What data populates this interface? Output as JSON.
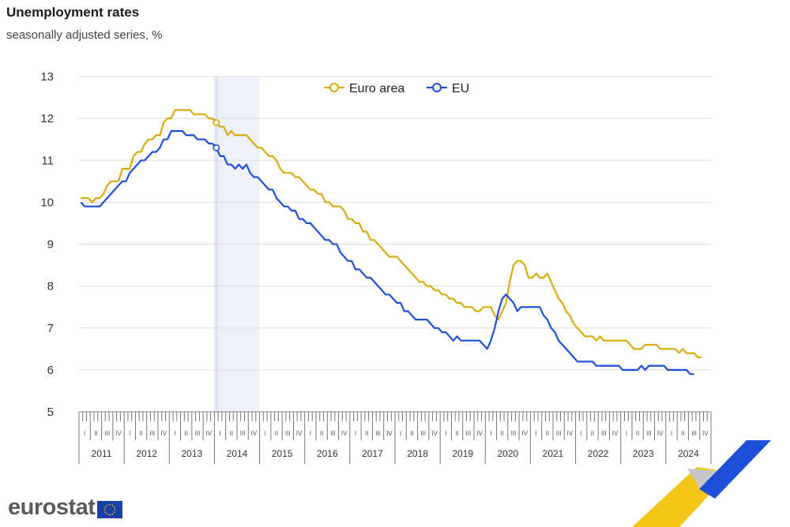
{
  "header": {
    "title": "Unemployment rates",
    "subtitle": "seasonally adjusted series, %"
  },
  "brand": {
    "name": "eurostat"
  },
  "colors": {
    "euro_area": "#d9ab0e",
    "eu": "#1d4fd8",
    "highlight": "#e6ebf8",
    "grid": "#dcdcdc"
  },
  "chart_data": {
    "type": "line",
    "title": "Unemployment rates",
    "subtitle": "seasonally adjusted series, %",
    "xlabel": "",
    "ylabel": "",
    "ylim": [
      5,
      13
    ],
    "yticks": [
      5,
      6,
      7,
      8,
      9,
      10,
      11,
      12,
      13
    ],
    "grid": true,
    "legend_position": "top-center",
    "x_start": "2011-01",
    "x_end": "2024-12",
    "quarters": [
      "I",
      "II",
      "III",
      "IV"
    ],
    "years": [
      "2011",
      "2012",
      "2013",
      "2014",
      "2015",
      "2016",
      "2017",
      "2018",
      "2019",
      "2020",
      "2021",
      "2022",
      "2023",
      "2024"
    ],
    "highlight_period": [
      "2014-01",
      "2014-12"
    ],
    "highlight_marker_date": "2014-01",
    "series": [
      {
        "name": "Euro area",
        "color": "#d9ab0e",
        "points": [
          [
            "2011-01",
            10.1
          ],
          [
            "2011-03",
            10.1
          ],
          [
            "2011-04",
            10.0
          ],
          [
            "2011-05",
            10.1
          ],
          [
            "2011-06",
            10.1
          ],
          [
            "2011-07",
            10.2
          ],
          [
            "2011-08",
            10.4
          ],
          [
            "2011-09",
            10.5
          ],
          [
            "2011-12",
            10.8
          ],
          [
            "2012-03",
            11.1
          ],
          [
            "2012-04",
            11.2
          ],
          [
            "2012-06",
            11.4
          ],
          [
            "2012-07",
            11.5
          ],
          [
            "2012-08",
            11.5
          ],
          [
            "2012-09",
            11.6
          ],
          [
            "2012-11",
            11.9
          ],
          [
            "2012-12",
            12.0
          ],
          [
            "2013-01",
            12.0
          ],
          [
            "2013-02",
            12.2
          ],
          [
            "2013-06",
            12.2
          ],
          [
            "2013-07",
            12.1
          ],
          [
            "2013-10",
            12.1
          ],
          [
            "2013-11",
            12.0
          ],
          [
            "2014-01",
            11.9
          ],
          [
            "2014-02",
            11.8
          ],
          [
            "2014-03",
            11.8
          ],
          [
            "2014-04",
            11.6
          ],
          [
            "2014-05",
            11.7
          ],
          [
            "2014-06",
            11.6
          ],
          [
            "2014-09",
            11.6
          ],
          [
            "2014-10",
            11.5
          ],
          [
            "2014-11",
            11.4
          ],
          [
            "2014-12",
            11.3
          ],
          [
            "2015-01",
            11.3
          ],
          [
            "2015-02",
            11.2
          ],
          [
            "2015-03",
            11.1
          ],
          [
            "2015-04",
            11.1
          ],
          [
            "2015-05",
            11.0
          ],
          [
            "2015-06",
            10.8
          ],
          [
            "2015-07",
            10.7
          ],
          [
            "2015-09",
            10.7
          ],
          [
            "2015-10",
            10.6
          ],
          [
            "2015-11",
            10.6
          ],
          [
            "2015-12",
            10.5
          ],
          [
            "2016-01",
            10.4
          ],
          [
            "2016-02",
            10.3
          ],
          [
            "2016-03",
            10.3
          ],
          [
            "2016-04",
            10.2
          ],
          [
            "2016-05",
            10.2
          ],
          [
            "2016-06",
            10.0
          ],
          [
            "2016-07",
            10.0
          ],
          [
            "2016-08",
            9.9
          ],
          [
            "2016-10",
            9.9
          ],
          [
            "2016-11",
            9.8
          ],
          [
            "2016-12",
            9.6
          ],
          [
            "2017-01",
            9.6
          ],
          [
            "2017-02",
            9.5
          ],
          [
            "2017-03",
            9.5
          ],
          [
            "2017-04",
            9.3
          ],
          [
            "2017-05",
            9.3
          ],
          [
            "2017-06",
            9.1
          ],
          [
            "2017-07",
            9.1
          ],
          [
            "2017-08",
            9.0
          ],
          [
            "2017-09",
            8.9
          ],
          [
            "2017-10",
            8.8
          ],
          [
            "2017-11",
            8.7
          ],
          [
            "2017-12",
            8.7
          ],
          [
            "2018-01",
            8.7
          ],
          [
            "2018-02",
            8.6
          ],
          [
            "2018-03",
            8.5
          ],
          [
            "2018-04",
            8.4
          ],
          [
            "2018-05",
            8.3
          ],
          [
            "2018-06",
            8.2
          ],
          [
            "2018-07",
            8.1
          ],
          [
            "2018-08",
            8.1
          ],
          [
            "2018-09",
            8.0
          ],
          [
            "2018-10",
            8.0
          ],
          [
            "2018-11",
            7.9
          ],
          [
            "2018-12",
            7.9
          ],
          [
            "2019-01",
            7.8
          ],
          [
            "2019-02",
            7.8
          ],
          [
            "2019-03",
            7.7
          ],
          [
            "2019-04",
            7.7
          ],
          [
            "2019-05",
            7.6
          ],
          [
            "2019-06",
            7.6
          ],
          [
            "2019-07",
            7.5
          ],
          [
            "2019-08",
            7.5
          ],
          [
            "2019-09",
            7.5
          ],
          [
            "2019-10",
            7.4
          ],
          [
            "2019-11",
            7.4
          ],
          [
            "2019-12",
            7.5
          ],
          [
            "2020-01",
            7.5
          ],
          [
            "2020-02",
            7.5
          ],
          [
            "2020-03",
            7.3
          ],
          [
            "2020-04",
            7.2
          ],
          [
            "2020-05",
            7.4
          ],
          [
            "2020-06",
            7.6
          ],
          [
            "2020-07",
            8.1
          ],
          [
            "2020-08",
            8.5
          ],
          [
            "2020-09",
            8.6
          ],
          [
            "2020-10",
            8.6
          ],
          [
            "2020-11",
            8.5
          ],
          [
            "2020-12",
            8.2
          ],
          [
            "2021-01",
            8.2
          ],
          [
            "2021-02",
            8.3
          ],
          [
            "2021-03",
            8.2
          ],
          [
            "2021-04",
            8.2
          ],
          [
            "2021-05",
            8.3
          ],
          [
            "2021-06",
            8.1
          ],
          [
            "2021-07",
            7.9
          ],
          [
            "2021-08",
            7.7
          ],
          [
            "2021-09",
            7.6
          ],
          [
            "2021-10",
            7.4
          ],
          [
            "2021-11",
            7.3
          ],
          [
            "2021-12",
            7.1
          ],
          [
            "2022-01",
            7.0
          ],
          [
            "2022-02",
            6.9
          ],
          [
            "2022-03",
            6.8
          ],
          [
            "2022-05",
            6.8
          ],
          [
            "2022-06",
            6.7
          ],
          [
            "2022-07",
            6.8
          ],
          [
            "2022-08",
            6.7
          ],
          [
            "2023-02",
            6.7
          ],
          [
            "2023-03",
            6.6
          ],
          [
            "2023-04",
            6.5
          ],
          [
            "2023-06",
            6.5
          ],
          [
            "2023-07",
            6.6
          ],
          [
            "2023-10",
            6.6
          ],
          [
            "2023-11",
            6.5
          ],
          [
            "2024-03",
            6.5
          ],
          [
            "2024-04",
            6.4
          ],
          [
            "2024-05",
            6.5
          ],
          [
            "2024-06",
            6.4
          ],
          [
            "2024-08",
            6.4
          ],
          [
            "2024-09",
            6.3
          ],
          [
            "2024-10",
            6.3
          ]
        ]
      },
      {
        "name": "EU",
        "color": "#1d4fd8",
        "points": [
          [
            "2011-01",
            10.0
          ],
          [
            "2011-02",
            9.9
          ],
          [
            "2011-06",
            9.9
          ],
          [
            "2011-07",
            10.0
          ],
          [
            "2011-08",
            10.1
          ],
          [
            "2011-09",
            10.2
          ],
          [
            "2011-10",
            10.3
          ],
          [
            "2011-11",
            10.4
          ],
          [
            "2011-12",
            10.5
          ],
          [
            "2012-01",
            10.5
          ],
          [
            "2012-02",
            10.7
          ],
          [
            "2012-03",
            10.8
          ],
          [
            "2012-04",
            10.9
          ],
          [
            "2012-05",
            11.0
          ],
          [
            "2012-06",
            11.0
          ],
          [
            "2012-07",
            11.1
          ],
          [
            "2012-08",
            11.2
          ],
          [
            "2012-09",
            11.2
          ],
          [
            "2012-10",
            11.3
          ],
          [
            "2012-11",
            11.5
          ],
          [
            "2012-12",
            11.5
          ],
          [
            "2013-01",
            11.7
          ],
          [
            "2013-04",
            11.7
          ],
          [
            "2013-05",
            11.6
          ],
          [
            "2013-07",
            11.6
          ],
          [
            "2013-08",
            11.5
          ],
          [
            "2013-10",
            11.5
          ],
          [
            "2013-11",
            11.4
          ],
          [
            "2013-12",
            11.4
          ],
          [
            "2014-01",
            11.3
          ],
          [
            "2014-02",
            11.1
          ],
          [
            "2014-03",
            11.1
          ],
          [
            "2014-04",
            10.9
          ],
          [
            "2014-05",
            10.9
          ],
          [
            "2014-06",
            10.8
          ],
          [
            "2014-07",
            10.9
          ],
          [
            "2014-08",
            10.8
          ],
          [
            "2014-09",
            10.9
          ],
          [
            "2014-10",
            10.7
          ],
          [
            "2014-11",
            10.6
          ],
          [
            "2014-12",
            10.6
          ],
          [
            "2015-01",
            10.5
          ],
          [
            "2015-02",
            10.4
          ],
          [
            "2015-03",
            10.3
          ],
          [
            "2015-04",
            10.3
          ],
          [
            "2015-05",
            10.1
          ],
          [
            "2015-06",
            10.0
          ],
          [
            "2015-07",
            9.9
          ],
          [
            "2015-08",
            9.9
          ],
          [
            "2015-09",
            9.8
          ],
          [
            "2015-10",
            9.8
          ],
          [
            "2015-11",
            9.6
          ],
          [
            "2015-12",
            9.6
          ],
          [
            "2016-01",
            9.5
          ],
          [
            "2016-02",
            9.5
          ],
          [
            "2016-03",
            9.4
          ],
          [
            "2016-04",
            9.3
          ],
          [
            "2016-05",
            9.2
          ],
          [
            "2016-06",
            9.1
          ],
          [
            "2016-07",
            9.1
          ],
          [
            "2016-08",
            9.0
          ],
          [
            "2016-09",
            9.0
          ],
          [
            "2016-10",
            8.8
          ],
          [
            "2016-11",
            8.7
          ],
          [
            "2016-12",
            8.6
          ],
          [
            "2017-01",
            8.6
          ],
          [
            "2017-02",
            8.4
          ],
          [
            "2017-03",
            8.4
          ],
          [
            "2017-04",
            8.3
          ],
          [
            "2017-05",
            8.2
          ],
          [
            "2017-06",
            8.2
          ],
          [
            "2017-07",
            8.1
          ],
          [
            "2017-08",
            8.0
          ],
          [
            "2017-09",
            7.9
          ],
          [
            "2017-10",
            7.8
          ],
          [
            "2017-11",
            7.8
          ],
          [
            "2017-12",
            7.7
          ],
          [
            "2018-01",
            7.6
          ],
          [
            "2018-02",
            7.6
          ],
          [
            "2018-03",
            7.4
          ],
          [
            "2018-04",
            7.4
          ],
          [
            "2018-05",
            7.3
          ],
          [
            "2018-06",
            7.2
          ],
          [
            "2018-09",
            7.2
          ],
          [
            "2018-10",
            7.1
          ],
          [
            "2018-11",
            7.0
          ],
          [
            "2018-12",
            7.0
          ],
          [
            "2019-01",
            6.9
          ],
          [
            "2019-02",
            6.9
          ],
          [
            "2019-03",
            6.8
          ],
          [
            "2019-04",
            6.7
          ],
          [
            "2019-05",
            6.8
          ],
          [
            "2019-06",
            6.7
          ],
          [
            "2019-11",
            6.7
          ],
          [
            "2019-12",
            6.6
          ],
          [
            "2020-01",
            6.5
          ],
          [
            "2020-02",
            6.7
          ],
          [
            "2020-03",
            7.0
          ],
          [
            "2020-04",
            7.4
          ],
          [
            "2020-05",
            7.7
          ],
          [
            "2020-06",
            7.8
          ],
          [
            "2020-07",
            7.7
          ],
          [
            "2020-08",
            7.6
          ],
          [
            "2020-09",
            7.4
          ],
          [
            "2020-10",
            7.5
          ],
          [
            "2021-03",
            7.5
          ],
          [
            "2021-04",
            7.3
          ],
          [
            "2021-05",
            7.2
          ],
          [
            "2021-06",
            7.0
          ],
          [
            "2021-07",
            6.9
          ],
          [
            "2021-08",
            6.7
          ],
          [
            "2021-09",
            6.6
          ],
          [
            "2021-10",
            6.5
          ],
          [
            "2021-11",
            6.4
          ],
          [
            "2021-12",
            6.3
          ],
          [
            "2022-01",
            6.2
          ],
          [
            "2022-05",
            6.2
          ],
          [
            "2022-06",
            6.1
          ],
          [
            "2022-12",
            6.1
          ],
          [
            "2023-01",
            6.0
          ],
          [
            "2023-05",
            6.0
          ],
          [
            "2023-06",
            6.1
          ],
          [
            "2023-07",
            6.0
          ],
          [
            "2023-08",
            6.1
          ],
          [
            "2023-12",
            6.1
          ],
          [
            "2024-01",
            6.0
          ],
          [
            "2024-06",
            6.0
          ],
          [
            "2024-07",
            5.9
          ],
          [
            "2024-08",
            5.9
          ]
        ]
      }
    ]
  }
}
